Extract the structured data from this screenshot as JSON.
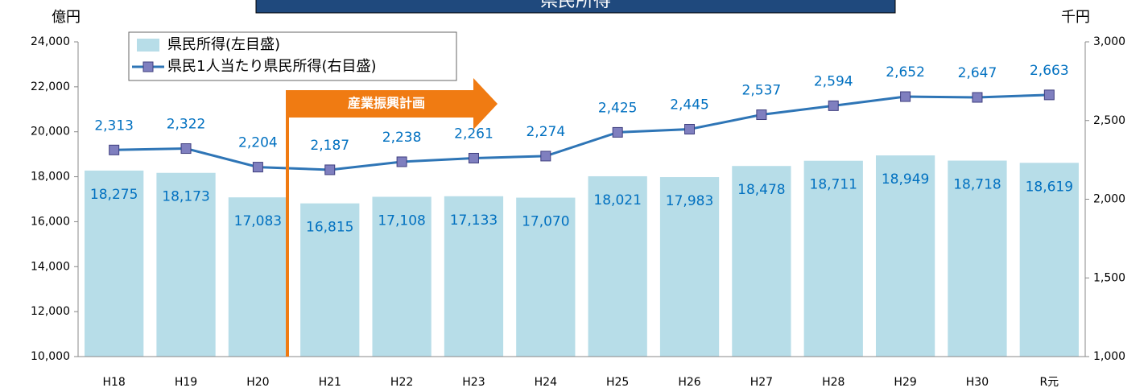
{
  "chart_data": {
    "type": "bar_line",
    "title": "県民所得",
    "y_label": "億円",
    "y2_label": "千円",
    "annotation": "産業振興計画",
    "categories": [
      "H18",
      "H19",
      "H20",
      "H21",
      "H22",
      "H23",
      "H24",
      "H25",
      "H26",
      "H27",
      "H28",
      "H29",
      "H30",
      "R元"
    ],
    "series": [
      {
        "name": "県民所得(左目盛)",
        "type": "bar",
        "color": "#b7dde8",
        "values": [
          18275,
          18173,
          17083,
          16815,
          17108,
          17133,
          17070,
          18021,
          17983,
          18478,
          18711,
          18949,
          18718,
          18619
        ],
        "value_labels": [
          "18,275",
          "18,173",
          "17,083",
          "16,815",
          "17,108",
          "17,133",
          "17,070",
          "18,021",
          "17,983",
          "18,478",
          "18,711",
          "18,949",
          "18,718",
          "18,619"
        ]
      },
      {
        "name": "県民1人当たり県民所得(右目盛)",
        "type": "line",
        "axis": "y2",
        "color": "#2e75b6",
        "marker_color": "#7f7fbf",
        "values": [
          2313,
          2322,
          2204,
          2187,
          2238,
          2261,
          2274,
          2425,
          2445,
          2537,
          2594,
          2652,
          2647,
          2663
        ],
        "value_labels": [
          "2,313",
          "2,322",
          "2,204",
          "2,187",
          "2,238",
          "2,261",
          "2,274",
          "2,425",
          "2,445",
          "2,537",
          "2,594",
          "2,652",
          "2,647",
          "2,663"
        ]
      }
    ],
    "ylim": [
      10000,
      24000
    ],
    "yticks": [
      {
        "value": 10000,
        "label": "10,000"
      },
      {
        "value": 12000,
        "label": "12,000"
      },
      {
        "value": 14000,
        "label": "14,000"
      },
      {
        "value": 16000,
        "label": "16,000"
      },
      {
        "value": 18000,
        "label": "18,000"
      },
      {
        "value": 20000,
        "label": "20,000"
      },
      {
        "value": 22000,
        "label": "22,000"
      },
      {
        "value": 24000,
        "label": "24,000"
      }
    ],
    "y2lim": [
      1000,
      3000
    ],
    "y2ticks": [
      {
        "value": 1000,
        "label": "1,000"
      },
      {
        "value": 1500,
        "label": "1,500"
      },
      {
        "value": 2000,
        "label": "2,000"
      },
      {
        "value": 2500,
        "label": "2,500"
      },
      {
        "value": 3000,
        "label": "3,000"
      }
    ],
    "legend": "upper left"
  }
}
